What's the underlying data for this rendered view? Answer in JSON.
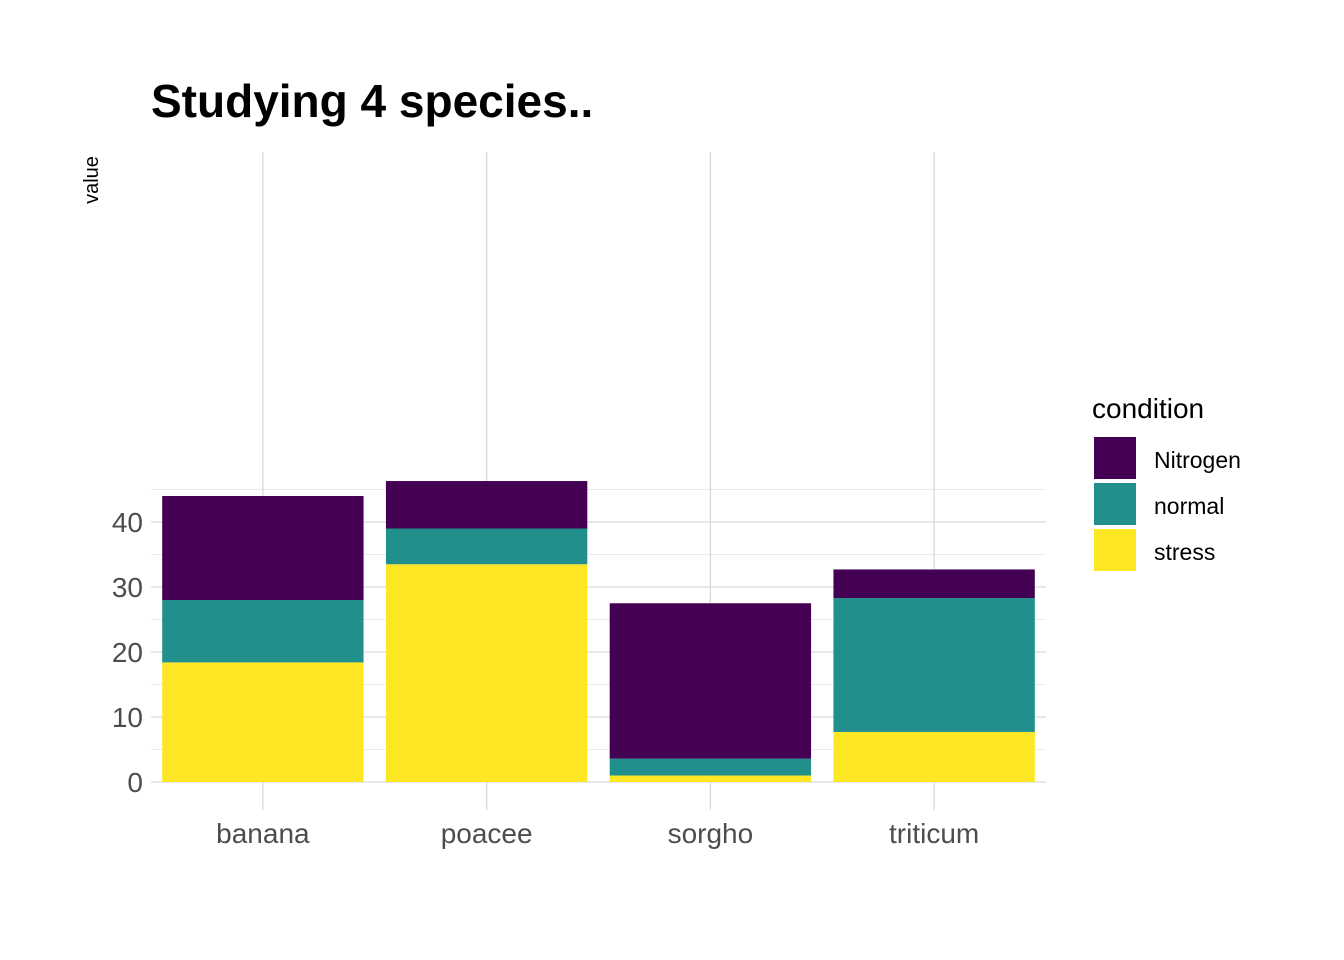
{
  "chart_data": {
    "type": "bar",
    "stacked": true,
    "title": "Studying 4 species..",
    "xlabel": "",
    "ylabel": "value",
    "categories": [
      "banana",
      "poacee",
      "sorgho",
      "triticum"
    ],
    "series": [
      {
        "name": "stress",
        "color": "#FDE725",
        "values": [
          18.4,
          33.5,
          1.0,
          7.7
        ]
      },
      {
        "name": "normal",
        "color": "#21908C",
        "values": [
          9.6,
          5.5,
          2.6,
          20.6
        ]
      },
      {
        "name": "Nitrogen",
        "color": "#440154",
        "values": [
          16.0,
          7.3,
          23.9,
          4.4
        ]
      }
    ],
    "ylim": [
      0,
      47.5
    ],
    "yticks": [
      0,
      10,
      20,
      30,
      40
    ],
    "grid": true,
    "legend": {
      "title": "condition",
      "position": "right",
      "order": [
        "Nitrogen",
        "normal",
        "stress"
      ]
    }
  }
}
